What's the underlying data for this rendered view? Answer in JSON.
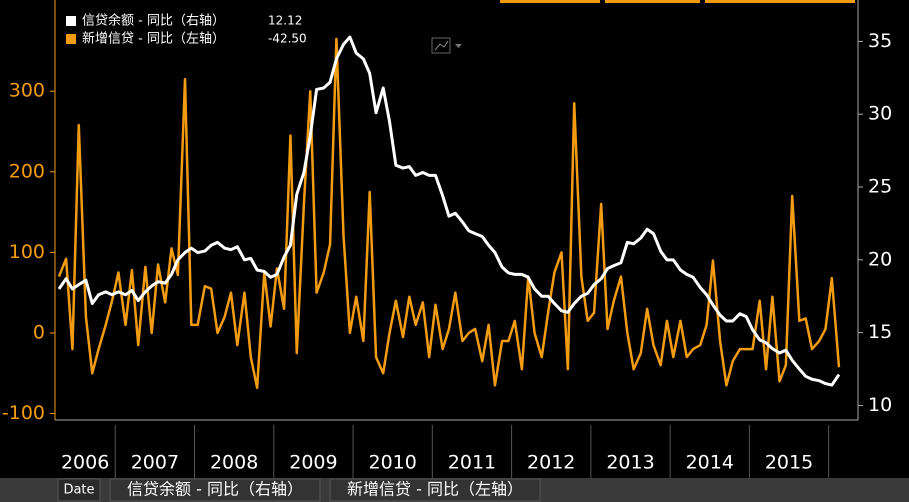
{
  "chart_data": {
    "type": "line",
    "x": [
      2006.29,
      2006.38,
      2006.46,
      2006.54,
      2006.63,
      2006.71,
      2006.79,
      2006.88,
      2006.96,
      2007.04,
      2007.13,
      2007.21,
      2007.29,
      2007.38,
      2007.46,
      2007.54,
      2007.63,
      2007.71,
      2007.79,
      2007.88,
      2007.96,
      2008.04,
      2008.13,
      2008.21,
      2008.29,
      2008.38,
      2008.46,
      2008.54,
      2008.63,
      2008.71,
      2008.79,
      2008.88,
      2008.96,
      2009.04,
      2009.13,
      2009.21,
      2009.29,
      2009.38,
      2009.46,
      2009.54,
      2009.63,
      2009.71,
      2009.79,
      2009.88,
      2009.96,
      2010.04,
      2010.13,
      2010.21,
      2010.29,
      2010.38,
      2010.46,
      2010.54,
      2010.63,
      2010.71,
      2010.79,
      2010.88,
      2010.96,
      2011.04,
      2011.13,
      2011.21,
      2011.29,
      2011.38,
      2011.46,
      2011.54,
      2011.63,
      2011.71,
      2011.79,
      2011.88,
      2011.96,
      2012.04,
      2012.13,
      2012.21,
      2012.29,
      2012.38,
      2012.46,
      2012.54,
      2012.63,
      2012.71,
      2012.79,
      2012.88,
      2012.96,
      2013.04,
      2013.13,
      2013.21,
      2013.29,
      2013.38,
      2013.46,
      2013.54,
      2013.63,
      2013.71,
      2013.79,
      2013.88,
      2013.96,
      2014.04,
      2014.13,
      2014.21,
      2014.29,
      2014.38,
      2014.46,
      2014.54,
      2014.63,
      2014.71,
      2014.79,
      2014.88,
      2014.96,
      2015.04,
      2015.13,
      2015.21,
      2015.29,
      2015.38,
      2015.46,
      2015.54,
      2015.63,
      2015.71,
      2015.79,
      2015.88,
      2015.96,
      2016.04,
      2016.13
    ],
    "series": [
      {
        "name": "信贷余额 - 同比（右轴）",
        "color": "#ffffff",
        "axis": "y2",
        "last_value_label": "12.12",
        "values": [
          18.0,
          18.7,
          18.0,
          18.3,
          18.6,
          17.0,
          17.6,
          17.8,
          17.6,
          17.8,
          17.6,
          17.9,
          17.2,
          17.8,
          18.2,
          18.5,
          18.4,
          19.0,
          20.0,
          20.5,
          20.8,
          20.5,
          20.6,
          21.0,
          21.2,
          20.8,
          20.7,
          20.9,
          20.0,
          20.1,
          19.3,
          19.2,
          18.8,
          19.0,
          20.2,
          21.0,
          24.5,
          26.0,
          28.5,
          31.7,
          31.8,
          32.2,
          33.8,
          34.8,
          35.3,
          34.2,
          33.8,
          32.8,
          30.1,
          31.8,
          29.5,
          26.5,
          26.3,
          26.4,
          25.8,
          26.0,
          25.8,
          25.8,
          24.4,
          23.0,
          23.2,
          22.6,
          22.0,
          21.8,
          21.6,
          21.0,
          20.5,
          19.5,
          19.1,
          19.0,
          19.0,
          18.8,
          18.0,
          17.5,
          17.5,
          17.0,
          16.5,
          16.4,
          17.0,
          17.5,
          17.7,
          18.3,
          18.7,
          19.4,
          19.6,
          19.8,
          21.2,
          21.1,
          21.5,
          22.1,
          21.8,
          20.6,
          20.0,
          20.0,
          19.3,
          19.0,
          18.8,
          18.1,
          17.6,
          16.9,
          16.2,
          15.8,
          15.8,
          16.3,
          16.1,
          15.2,
          14.5,
          14.3,
          13.9,
          13.6,
          13.8,
          13.1,
          12.5,
          12.0,
          11.8,
          11.7,
          11.5,
          11.4,
          12.12
        ]
      },
      {
        "name": "新增信贷 - 同比（左轴）",
        "color": "#f39c12",
        "axis": "y",
        "last_value_label": "-42.50",
        "values": [
          70,
          92,
          -20,
          258,
          20,
          -50,
          -20,
          10,
          40,
          75,
          10,
          78,
          -15,
          82,
          0,
          85,
          38,
          105,
          72,
          315,
          10,
          10,
          58,
          55,
          0,
          20,
          50,
          -15,
          50,
          -30,
          -68,
          75,
          8,
          80,
          30,
          245,
          -25,
          160,
          300,
          50,
          75,
          110,
          365,
          120,
          0,
          45,
          -10,
          175,
          -30,
          -50,
          0,
          40,
          -5,
          45,
          10,
          38,
          -30,
          35,
          -20,
          5,
          50,
          -10,
          0,
          5,
          -35,
          10,
          -65,
          -10,
          -10,
          15,
          -45,
          70,
          0,
          -30,
          25,
          75,
          100,
          -45,
          285,
          70,
          15,
          25,
          160,
          5,
          40,
          70,
          0,
          -45,
          -25,
          30,
          -15,
          -40,
          15,
          -30,
          15,
          -30,
          -20,
          -15,
          10,
          90,
          -10,
          -65,
          -35,
          -20,
          -20,
          -20,
          40,
          -45,
          45,
          -60,
          -40,
          170,
          15,
          18,
          -20,
          -10,
          5,
          68,
          -42.5
        ]
      }
    ],
    "xlim": [
      2006.24,
      2016.37
    ],
    "xticks": [
      {
        "value": 2006.5,
        "label": "2006"
      },
      {
        "value": 2007.5,
        "label": "2007"
      },
      {
        "value": 2008.5,
        "label": "2008"
      },
      {
        "value": 2009.5,
        "label": "2009"
      },
      {
        "value": 2010.5,
        "label": "2010"
      },
      {
        "value": 2011.5,
        "label": "2011"
      },
      {
        "value": 2012.5,
        "label": "2012"
      },
      {
        "value": 2013.5,
        "label": "2013"
      },
      {
        "value": 2014.5,
        "label": "2014"
      },
      {
        "value": 2015.5,
        "label": "2015"
      }
    ],
    "ylim": [
      -108,
      407
    ],
    "yticks": [
      -100,
      0,
      100,
      200,
      300
    ],
    "y2lim": [
      9,
      37.5
    ],
    "y2ticks": [
      10,
      15,
      20,
      25,
      30,
      35
    ],
    "footer_tabs": [
      "Date",
      "信贷余额 - 同比（右轴）",
      "新增信贷 - 同比（左轴）"
    ]
  }
}
